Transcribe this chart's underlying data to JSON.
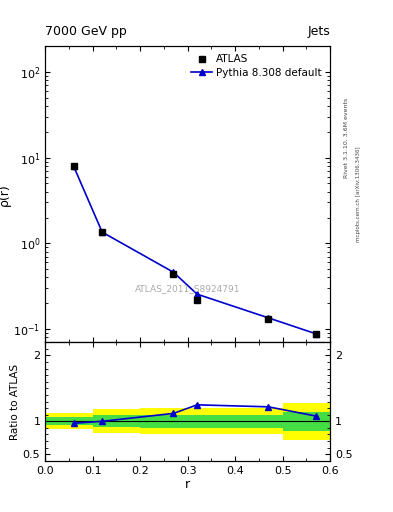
{
  "title_left": "7000 GeV pp",
  "title_right": "Jets",
  "right_label_top": "Rivet 3.1.10, 3.6M events",
  "right_label_bot": "mcplots.cern.ch [arXiv:1306.3436]",
  "watermark": "ATLAS_2011_S8924791",
  "ylabel_main": "ρ(r)",
  "ylabel_ratio": "Ratio to ATLAS",
  "xlabel": "r",
  "main_data_x": [
    0.06,
    0.12,
    0.27,
    0.32,
    0.47,
    0.57
  ],
  "main_data_y": [
    7.9,
    1.35,
    0.44,
    0.22,
    0.13,
    0.088
  ],
  "main_mc_x": [
    0.06,
    0.12,
    0.27,
    0.32,
    0.47,
    0.57
  ],
  "main_mc_y": [
    7.9,
    1.35,
    0.46,
    0.255,
    0.135,
    0.088
  ],
  "ylim_main": [
    0.07,
    200
  ],
  "xlim": [
    0.0,
    0.6
  ],
  "ratio_mc_x": [
    0.06,
    0.12,
    0.27,
    0.32,
    0.47,
    0.57
  ],
  "ratio_mc_y": [
    0.97,
    1.0,
    1.12,
    1.25,
    1.22,
    1.08
  ],
  "ratio_ylim": [
    0.4,
    2.2
  ],
  "ratio_yticks": [
    0.5,
    1.0,
    2.0
  ],
  "band_x_edges": [
    0.0,
    0.1,
    0.2,
    0.4,
    0.5,
    0.6
  ],
  "band_yellow_lo": [
    0.88,
    0.82,
    0.8,
    0.8,
    0.72,
    0.72
  ],
  "band_yellow_hi": [
    1.12,
    1.18,
    1.2,
    1.2,
    1.28,
    1.28
  ],
  "band_green_lo": [
    0.94,
    0.91,
    0.9,
    0.9,
    0.86,
    0.86
  ],
  "band_green_hi": [
    1.06,
    1.09,
    1.1,
    1.1,
    1.14,
    1.14
  ],
  "color_data": "#000000",
  "color_mc": "#0000cc",
  "color_yellow": "#ffff00",
  "color_green": "#44dd44",
  "legend_items": [
    "ATLAS",
    "Pythia 8.308 default"
  ]
}
